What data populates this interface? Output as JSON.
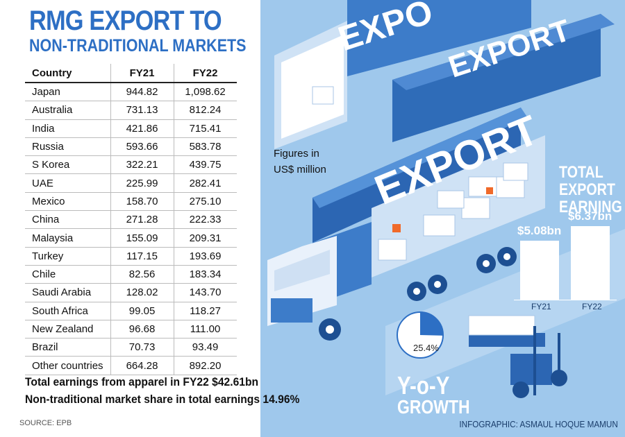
{
  "title": {
    "line1": "RMG EXPORT TO",
    "line2": "NON-TRADITIONAL MARKETS"
  },
  "table": {
    "headers": [
      "Country",
      "FY21",
      "FY22"
    ],
    "rows": [
      [
        "Japan",
        "944.82",
        "1,098.62"
      ],
      [
        "Australia",
        "731.13",
        "812.24"
      ],
      [
        "India",
        "421.86",
        "715.41"
      ],
      [
        "Russia",
        "593.66",
        "583.78"
      ],
      [
        "S Korea",
        "322.21",
        "439.75"
      ],
      [
        "UAE",
        "225.99",
        "282.41"
      ],
      [
        "Mexico",
        "158.70",
        "275.10"
      ],
      [
        "China",
        "271.28",
        "222.33"
      ],
      [
        "Malaysia",
        "155.09",
        "209.31"
      ],
      [
        "Turkey",
        "117.15",
        "193.69"
      ],
      [
        "Chile",
        "82.56",
        "183.34"
      ],
      [
        "Saudi Arabia",
        "128.02",
        "143.70"
      ],
      [
        "South Africa",
        "99.05",
        "118.27"
      ],
      [
        "New Zealand",
        "96.68",
        "111.00"
      ],
      [
        "Brazil",
        "70.73",
        "93.49"
      ],
      [
        "Other countries",
        "664.28",
        "892.20"
      ]
    ]
  },
  "summary": {
    "line1": "Total earnings from apparel in FY22 $42.61bn",
    "line2": "Non-traditional market share in total earnings 14.96%"
  },
  "source": "SOURCE: EPB",
  "credit": "INFOGRAPHIC: ASMAUL HOQUE MAMUN",
  "units_note": {
    "line1": "Figures in",
    "line2": "US$ million"
  },
  "truck_labels": {
    "back": "EXPO",
    "middle": "EXPORT",
    "front": "EXPORT"
  },
  "chart_data": [
    {
      "type": "bar",
      "title": "TOTAL EXPORT EARNING",
      "title_lines": [
        "TOTAL",
        "EXPORT",
        "EARNING"
      ],
      "categories": [
        "FY21",
        "FY22"
      ],
      "values": [
        5.08,
        6.37
      ],
      "value_labels": [
        "$5.08bn",
        "$6.37bn"
      ],
      "unit": "bn USD",
      "ylim": [
        0,
        8
      ]
    },
    {
      "type": "pie",
      "title": "Y-o-Y GROWTH",
      "title_lines": [
        "Y-o-Y",
        "GROWTH"
      ],
      "values": [
        25.4,
        74.6
      ],
      "value_label": "25.4%"
    }
  ],
  "colors": {
    "accent": "#2d6fc4",
    "panel": "#9fc8ec",
    "truck": "#3d7cc9",
    "pie_slice": "#2d6fc4"
  }
}
